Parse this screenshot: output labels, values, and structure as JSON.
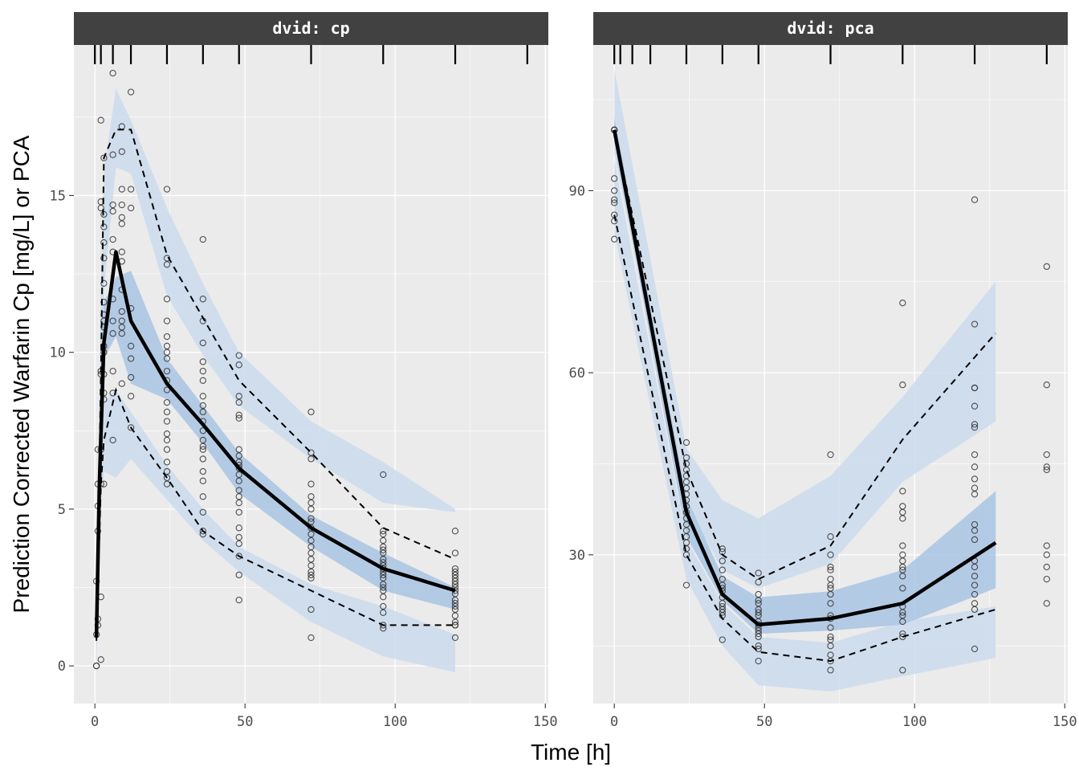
{
  "chart_data": {
    "type": "scatter",
    "xlabel": "Time [h]",
    "ylabel": "Prediction Corrected Warfarin Cp [mg/L] or PCA",
    "colors": {
      "panel_bg": "#ebebeb",
      "strip_bg": "#414141",
      "grid": "#ffffff",
      "ribbon_outer": "#cbdbec",
      "ribbon_median": "#a9c4e3",
      "line": "#000000"
    },
    "panels": [
      {
        "strip": "dvid: cp",
        "xlim": [
          -7,
          151
        ],
        "ylim": [
          -1.2,
          19.8
        ],
        "x_breaks": [
          0,
          50,
          100,
          150
        ],
        "x_tick_labels": [
          "0",
          "50",
          "100",
          "150"
        ],
        "y_breaks": [
          0,
          5,
          10,
          15
        ],
        "y_tick_labels": [
          "0",
          "5",
          "10",
          "15"
        ],
        "bin_rugs": [
          0,
          2,
          6,
          12,
          24,
          36,
          48,
          72,
          96,
          120,
          144
        ],
        "ribbon_upper": {
          "x": [
            0.5,
            2,
            3,
            7,
            12,
            24,
            36,
            48,
            72,
            96,
            120
          ],
          "lo": [
            0.2,
            8.0,
            12.0,
            15.9,
            15.7,
            11.8,
            9.9,
            8.3,
            6.6,
            5.2,
            4.9
          ],
          "hi": [
            1.7,
            12.0,
            15.8,
            18.4,
            17.4,
            14.6,
            12.2,
            10.0,
            7.8,
            6.5,
            5.0
          ]
        },
        "ribbon_median": {
          "x": [
            0.5,
            2,
            3,
            7,
            12,
            24,
            36,
            48,
            72,
            96,
            120
          ],
          "lo": [
            0.6,
            7.4,
            9.8,
            10.5,
            9.0,
            8.5,
            7.1,
            5.5,
            3.8,
            2.4,
            1.8
          ],
          "hi": [
            1.2,
            9.6,
            11.6,
            12.4,
            12.6,
            9.8,
            8.3,
            6.8,
            4.8,
            3.6,
            2.5
          ]
        },
        "ribbon_lower": {
          "x": [
            0.5,
            2,
            3,
            7,
            12,
            24,
            36,
            48,
            72,
            96,
            120
          ],
          "lo": [
            0.0,
            5.2,
            6.2,
            6.0,
            6.6,
            5.3,
            4.0,
            3.0,
            1.4,
            0.3,
            -0.2
          ],
          "hi": [
            0.9,
            6.9,
            8.4,
            8.8,
            8.1,
            6.4,
            5.0,
            3.8,
            2.6,
            1.9,
            1.0
          ]
        },
        "median_line": {
          "x": [
            0.5,
            1.5,
            3,
            7,
            12,
            24,
            36,
            48,
            72,
            96,
            120
          ],
          "y": [
            0.9,
            5.8,
            10.3,
            13.2,
            11.0,
            9.0,
            7.7,
            6.3,
            4.4,
            3.1,
            2.4
          ]
        },
        "pct_lines": [
          {
            "x": [
              0.5,
              2,
              3,
              7,
              12,
              24,
              36,
              48,
              72,
              96,
              120
            ],
            "y": [
              1.1,
              9.2,
              16.2,
              17.1,
              17.1,
              13.1,
              11.1,
              9.1,
              6.8,
              4.4,
              3.4
            ]
          },
          {
            "x": [
              0.5,
              2,
              3,
              7,
              12,
              24,
              36,
              48,
              72,
              96,
              120
            ],
            "y": [
              0.8,
              5.8,
              7.2,
              8.8,
              7.6,
              6.0,
              4.3,
              3.5,
              2.4,
              1.3,
              1.3
            ]
          }
        ],
        "points": {
          "x": [
            0.5,
            0.5,
            0.5,
            0.5,
            1,
            1,
            1,
            1,
            1,
            1,
            2,
            2,
            2,
            2,
            2,
            2,
            2,
            2,
            2,
            3,
            3,
            3,
            3,
            3,
            3,
            3,
            3,
            3,
            3,
            3,
            3,
            3,
            3,
            3,
            3,
            6,
            6,
            6,
            6,
            6,
            6,
            6,
            6,
            6,
            6,
            6,
            6,
            9,
            9,
            9,
            9,
            9,
            9,
            9,
            9,
            9,
            9,
            9,
            9,
            9,
            9,
            12,
            12,
            12,
            12,
            12,
            12,
            12,
            12,
            12,
            24,
            24,
            24,
            24,
            24,
            24,
            24,
            24,
            24,
            24,
            24,
            24,
            24,
            24,
            24,
            24,
            24,
            24,
            24,
            24,
            24,
            24,
            36,
            36,
            36,
            36,
            36,
            36,
            36,
            36,
            36,
            36,
            36,
            36,
            36,
            36,
            36,
            36,
            36,
            36,
            36,
            36,
            36,
            36,
            48,
            48,
            48,
            48,
            48,
            48,
            48,
            48,
            48,
            48,
            48,
            48,
            48,
            48,
            48,
            48,
            48,
            48,
            48,
            48,
            48,
            48,
            48,
            72,
            72,
            72,
            72,
            72,
            72,
            72,
            72,
            72,
            72,
            72,
            72,
            72,
            72,
            72,
            72,
            72,
            72,
            72,
            72,
            72,
            96,
            96,
            96,
            96,
            96,
            96,
            96,
            96,
            96,
            96,
            96,
            96,
            96,
            96,
            96,
            96,
            96,
            96,
            96,
            96,
            96,
            96,
            120,
            120,
            120,
            120,
            120,
            120,
            120,
            120,
            120,
            120,
            120,
            120,
            120,
            120,
            120,
            120,
            120,
            120,
            120,
            120
          ],
          "y": [
            0.0,
            0.0,
            1.0,
            2.7,
            1.3,
            1.5,
            4.3,
            5.1,
            5.8,
            6.9,
            9.4,
            17.4,
            14.6,
            14.8,
            9.3,
            6.9,
            0.2,
            2.2,
            5.8,
            16.2,
            13.5,
            13.0,
            12.2,
            11.2,
            11.0,
            10.8,
            10.0,
            9.3,
            8.7,
            8.5,
            5.8,
            14.0,
            14.4,
            11.6,
            10.2,
            18.9,
            16.3,
            14.7,
            14.5,
            13.6,
            13.2,
            11.7,
            11.0,
            10.6,
            9.4,
            8.7,
            7.2,
            17.2,
            16.4,
            15.2,
            14.3,
            14.1,
            13.2,
            12.9,
            12.0,
            11.0,
            10.8,
            9.0,
            14.7,
            11.3,
            10.6,
            18.3,
            15.2,
            14.6,
            11.4,
            10.2,
            9.8,
            9.2,
            8.6,
            7.6,
            15.2,
            13.0,
            12.8,
            11.7,
            11.0,
            10.5,
            10.2,
            10.0,
            9.8,
            9.4,
            9.1,
            8.8,
            8.4,
            8.1,
            7.8,
            7.4,
            7.2,
            6.9,
            6.5,
            6.2,
            6.0,
            5.8,
            13.6,
            11.7,
            11.0,
            10.3,
            9.7,
            9.4,
            9.1,
            8.6,
            8.3,
            8.1,
            7.8,
            7.5,
            7.2,
            6.9,
            6.6,
            6.2,
            5.9,
            5.4,
            4.9,
            4.3,
            4.2,
            7.0,
            9.9,
            9.6,
            8.6,
            8.4,
            8.0,
            7.9,
            6.9,
            6.7,
            6.5,
            6.3,
            6.1,
            5.9,
            5.6,
            5.4,
            5.2,
            4.9,
            4.4,
            4.1,
            3.9,
            3.5,
            2.9,
            2.1,
            6.4,
            8.1,
            6.8,
            6.6,
            5.8,
            5.4,
            5.2,
            5.0,
            4.7,
            4.4,
            4.2,
            4.0,
            3.8,
            3.6,
            3.4,
            3.2,
            3.0,
            2.9,
            2.8,
            1.8,
            0.9,
            4.6,
            6.1,
            4.3,
            4.2,
            4.0,
            3.8,
            3.6,
            3.4,
            3.3,
            3.2,
            3.1,
            3.0,
            2.9,
            2.8,
            2.6,
            2.5,
            2.4,
            2.2,
            1.9,
            1.7,
            1.3,
            1.2,
            3.7,
            4.3,
            3.6,
            3.1,
            3.0,
            2.9,
            2.8,
            2.7,
            2.6,
            2.5,
            2.4,
            2.3,
            2.1,
            2.0,
            1.9,
            1.8,
            1.6,
            1.4,
            1.3,
            1.3,
            0.9
          ]
        }
      },
      {
        "strip": "dvid: pca",
        "xlim": [
          -7,
          151
        ],
        "ylim": [
          5.5,
          114
        ],
        "x_breaks": [
          0,
          50,
          100,
          150
        ],
        "x_tick_labels": [
          "0",
          "50",
          "100",
          "150"
        ],
        "y_breaks": [
          30,
          60,
          90
        ],
        "y_tick_labels": [
          "30",
          "60",
          "90"
        ],
        "bin_rugs": [
          0,
          2,
          6,
          12,
          24,
          36,
          48,
          72,
          96,
          120,
          144
        ],
        "ribbon_upper": {
          "x": [
            0,
            24,
            36,
            48,
            72,
            96,
            127
          ],
          "lo": [
            96,
            38.5,
            27.5,
            24.5,
            28.5,
            42,
            52
          ],
          "hi": [
            110,
            47.5,
            39.0,
            36.0,
            43.0,
            56,
            75
          ]
        },
        "ribbon_median": {
          "x": [
            0,
            24,
            36,
            48,
            72,
            96,
            127
          ],
          "lo": [
            98,
            33.0,
            22.5,
            17.0,
            17.5,
            18.5,
            24.5
          ],
          "hi": [
            102,
            39.5,
            26.5,
            23.0,
            24.0,
            27.5,
            40.5
          ]
        },
        "ribbon_lower": {
          "x": [
            0,
            24,
            36,
            48,
            72,
            96,
            127
          ],
          "lo": [
            83,
            26.0,
            15.0,
            8.5,
            7.5,
            10.0,
            13.0
          ],
          "hi": [
            95,
            32.5,
            22.0,
            16.5,
            15.5,
            19.0,
            21.5
          ]
        },
        "median_line": {
          "x": [
            0,
            24,
            36,
            48,
            72,
            96,
            127
          ],
          "y": [
            100,
            37,
            23.5,
            18.5,
            19.5,
            22,
            32
          ]
        },
        "pct_lines": [
          {
            "x": [
              0,
              24,
              36,
              48,
              72,
              96,
              127
            ],
            "y": [
              100,
              44,
              30.0,
              26.0,
              31.5,
              49,
              66.5
            ]
          },
          {
            "x": [
              0,
              24,
              36,
              48,
              72,
              96,
              127
            ],
            "y": [
              86,
              30,
              19.5,
              14.0,
              12.5,
              16.5,
              21.0
            ]
          }
        ],
        "points": {
          "x": [
            0,
            0,
            0,
            0,
            0,
            0,
            0,
            0,
            0,
            0,
            24,
            24,
            24,
            24,
            24,
            24,
            24,
            24,
            24,
            24,
            24,
            24,
            24,
            24,
            24,
            24,
            24,
            24,
            24,
            36,
            36,
            36,
            36,
            36,
            36,
            36,
            36,
            36,
            36,
            36,
            36,
            36,
            36,
            36,
            48,
            48,
            48,
            48,
            48,
            48,
            48,
            48,
            48,
            48,
            48,
            48,
            48,
            48,
            48,
            48,
            48,
            72,
            72,
            72,
            72,
            72,
            72,
            72,
            72,
            72,
            72,
            72,
            72,
            72,
            72,
            72,
            72,
            72,
            72,
            72,
            96,
            96,
            96,
            96,
            96,
            96,
            96,
            96,
            96,
            96,
            96,
            96,
            96,
            96,
            96,
            96,
            96,
            96,
            96,
            96,
            120,
            120,
            120,
            120,
            120,
            120,
            120,
            120,
            120,
            120,
            120,
            120,
            120,
            120,
            120,
            120,
            120,
            120,
            120,
            120,
            120,
            120,
            120,
            144,
            144,
            144,
            144,
            144,
            144,
            144,
            144,
            144,
            144
          ],
          "y": [
            100,
            100,
            100,
            92,
            90,
            88.5,
            88,
            86,
            85,
            82,
            48.5,
            46,
            45,
            44,
            43,
            42,
            41,
            40,
            39,
            38,
            37,
            36,
            35,
            34,
            33,
            32,
            31,
            30,
            25,
            31,
            30.5,
            29,
            27.5,
            26,
            25,
            24.5,
            24,
            23,
            22,
            21.5,
            21,
            20.5,
            20,
            16,
            27,
            25.5,
            23.5,
            22.5,
            22,
            21,
            20.5,
            20,
            19,
            18.5,
            18,
            17.5,
            17,
            16.5,
            15,
            14.5,
            12.5,
            46.5,
            33,
            30,
            28,
            27.5,
            26,
            25,
            24.5,
            23.5,
            22,
            20,
            19.5,
            18,
            16.5,
            16,
            15,
            13.5,
            12.5,
            11,
            71.5,
            58,
            40.5,
            38,
            37,
            36,
            31.5,
            30,
            29,
            28,
            27.5,
            26.5,
            24.5,
            21.5,
            20.5,
            20,
            19,
            17,
            16.5,
            11,
            88.5,
            68,
            57.5,
            57.5,
            54.5,
            51.5,
            51,
            46.5,
            44.5,
            42.5,
            41,
            40,
            35,
            34,
            32.5,
            29,
            28,
            26.5,
            25,
            23.5,
            22,
            21,
            14.5,
            77.5,
            58,
            46.5,
            44.5,
            44,
            31.5,
            30,
            28,
            26,
            22
          ]
        }
      }
    ]
  }
}
